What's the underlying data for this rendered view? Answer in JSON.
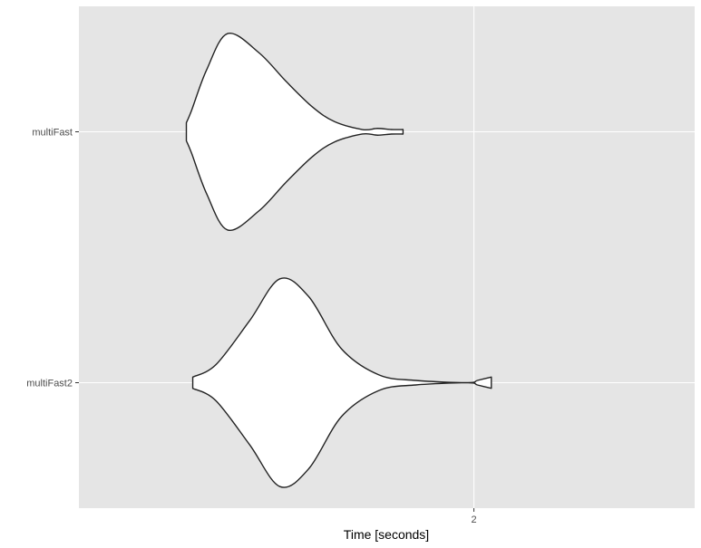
{
  "chart_data": {
    "type": "violin",
    "orientation": "horizontal",
    "xlabel": "Time [seconds]",
    "ylabel": "",
    "x_ticks": [
      2
    ],
    "x_tick_labels": [
      "2"
    ],
    "xlim": [
      1.66,
      2.19
    ],
    "grid": true,
    "legend": "none",
    "categories": [
      "multiFast",
      "multiFast2"
    ],
    "series": [
      {
        "category": "multiFast",
        "profile": [
          [
            1.7525,
            0.08
          ],
          [
            1.757,
            0.19
          ],
          [
            1.77,
            0.55
          ],
          [
            1.788,
            0.87
          ],
          [
            1.815,
            0.7
          ],
          [
            1.838,
            0.45
          ],
          [
            1.861,
            0.22
          ],
          [
            1.88,
            0.09
          ],
          [
            1.904,
            0.02
          ],
          [
            1.917,
            0.03
          ],
          [
            1.929,
            0.02
          ],
          [
            1.939,
            0.02
          ]
        ]
      },
      {
        "category": "multiFast2",
        "profile": [
          [
            1.758,
            0.05
          ],
          [
            1.778,
            0.16
          ],
          [
            1.807,
            0.55
          ],
          [
            1.833,
            0.92
          ],
          [
            1.858,
            0.76
          ],
          [
            1.886,
            0.3
          ],
          [
            1.918,
            0.07
          ],
          [
            1.95,
            0.02
          ],
          [
            1.995,
            0.0
          ],
          [
            2.003,
            0.02
          ],
          [
            2.015,
            0.05
          ]
        ]
      }
    ]
  }
}
